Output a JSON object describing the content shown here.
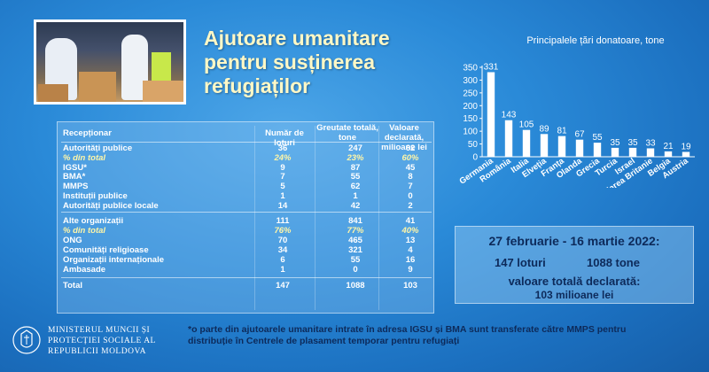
{
  "title": "Ajutoare umanitare pentru susținerea refugiaților",
  "photo": {
    "icon": "humanitarian-aid-photo"
  },
  "table": {
    "headers": {
      "receiver": "Recepționar",
      "lots": "Număr de loturi",
      "weight": "Greutate totală, tone",
      "value": "Valoare declarată, milioane lei"
    },
    "rows": [
      {
        "label": "Autorități publice",
        "lots": "36",
        "weight": "247",
        "value": "62",
        "style": "normal"
      },
      {
        "label": "% din total",
        "lots": "24%",
        "weight": "23%",
        "value": "60%",
        "style": "italic"
      },
      {
        "label": "IGSU*",
        "lots": "9",
        "weight": "87",
        "value": "45",
        "style": "normal"
      },
      {
        "label": "BMA*",
        "lots": "7",
        "weight": "55",
        "value": "8",
        "style": "normal"
      },
      {
        "label": "MMPS",
        "lots": "5",
        "weight": "62",
        "value": "7",
        "style": "normal"
      },
      {
        "label": "Instituții publice",
        "lots": "1",
        "weight": "1",
        "value": "0",
        "style": "normal"
      },
      {
        "label": "Autorități publice locale",
        "lots": "14",
        "weight": "42",
        "value": "2",
        "style": "normal"
      },
      {
        "label": "Alte organizații",
        "lots": "111",
        "weight": "841",
        "value": "41",
        "style": "normal"
      },
      {
        "label": "% din total",
        "lots": "76%",
        "weight": "77%",
        "value": "40%",
        "style": "italic"
      },
      {
        "label": "ONG",
        "lots": "70",
        "weight": "465",
        "value": "13",
        "style": "normal"
      },
      {
        "label": "Comunități religioase",
        "lots": "34",
        "weight": "321",
        "value": "4",
        "style": "normal"
      },
      {
        "label": "Organizații internaționale",
        "lots": "6",
        "weight": "55",
        "value": "16",
        "style": "normal"
      },
      {
        "label": "Ambasade",
        "lots": "1",
        "weight": "0",
        "value": "9",
        "style": "normal"
      },
      {
        "label": "Total",
        "lots": "147",
        "weight": "1088",
        "value": "103",
        "style": "normal"
      }
    ]
  },
  "summary": {
    "period": "27 februarie - 16 martie 2022:",
    "lots": "147 loturi",
    "tons": "1088 tone",
    "value_label": "valoare totală declarată:",
    "value": "103 milioane lei"
  },
  "ministry": {
    "line1": "MINISTERUL MUNCII ȘI",
    "line2": "PROTECȚIEI SOCIALE AL",
    "line3": "REPUBLICII MOLDOVA",
    "emblem_icon": "moldova-coat-of-arms-icon"
  },
  "footnote": "*o parte din ajutoarele umanitare intrate în adresa IGSU și BMA sunt transferate către MMPS pentru distribuție în Centrele de plasament temporar pentru refugiați",
  "chart_data": {
    "type": "bar",
    "title": "Principalele țări donatoare, tone",
    "categories": [
      "Germania",
      "România",
      "Italia",
      "Elveția",
      "Franța",
      "Olanda",
      "Grecia",
      "Turcia",
      "Israel",
      "Marea Britanie",
      "Belgia",
      "Austria"
    ],
    "values": [
      331,
      143,
      105,
      89,
      81,
      67,
      55,
      35,
      35,
      33,
      21,
      19
    ],
    "ylim": [
      0,
      350
    ],
    "yticks": [
      0,
      50,
      100,
      150,
      200,
      250,
      300,
      350
    ],
    "bar_color": "#ffffff",
    "grid": false
  }
}
